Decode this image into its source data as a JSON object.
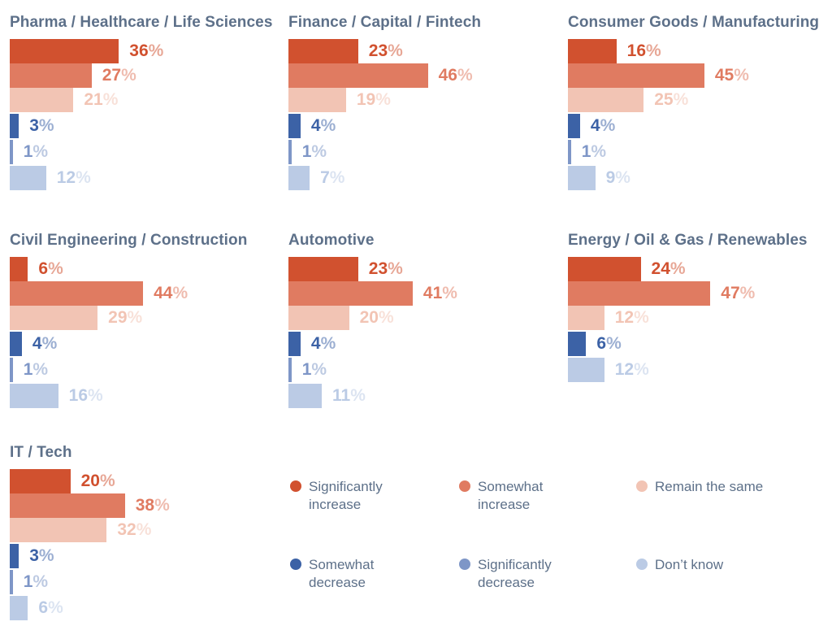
{
  "chart_data": {
    "type": "bar",
    "orientation": "horizontal",
    "unit": "%",
    "categories": [
      "Significantly increase",
      "Somewhat increase",
      "Remain the same",
      "Somewhat decrease",
      "Significantly decrease",
      "Don't know"
    ],
    "series_colors": [
      "#d1512f",
      "#e07b61",
      "#f2c4b4",
      "#3c62a6",
      "#7e96c7",
      "#bbcbe5"
    ],
    "value_range": [
      0,
      47
    ],
    "grid": false,
    "legend_position": "bottom-right",
    "charts": [
      {
        "title": "Pharma / Healthcare / Life Sciences",
        "values": [
          36,
          27,
          21,
          3,
          1,
          12
        ]
      },
      {
        "title": "Finance / Capital / Fintech",
        "values": [
          23,
          46,
          19,
          4,
          1,
          7
        ]
      },
      {
        "title": "Consumer Goods / Manufacturing",
        "values": [
          16,
          45,
          25,
          4,
          1,
          9
        ]
      },
      {
        "title": "Civil Engineering / Construction",
        "values": [
          6,
          44,
          29,
          4,
          1,
          16
        ]
      },
      {
        "title": "Automotive",
        "values": [
          23,
          41,
          20,
          4,
          1,
          11
        ]
      },
      {
        "title": "Energy / Oil & Gas / Renewables",
        "values": [
          24,
          47,
          12,
          6,
          null,
          12
        ]
      },
      {
        "title": "IT / Tech",
        "values": [
          20,
          38,
          32,
          3,
          1,
          6
        ]
      }
    ]
  },
  "legend": {
    "items": [
      {
        "label": "Significantly\nincrease",
        "color": "#d1512f"
      },
      {
        "label": "Somewhat\nincrease",
        "color": "#e07b61"
      },
      {
        "label": "Remain the same",
        "color": "#f2c4b4"
      },
      {
        "label": "Somewhat\ndecrease",
        "color": "#3c62a6"
      },
      {
        "label": "Significantly\ndecrease",
        "color": "#7e96c7"
      },
      {
        "label": "Don’t know",
        "color": "#bbcbe5"
      }
    ]
  },
  "styles": {
    "title_text_color": "#5d7089",
    "background": "#ffffff"
  }
}
